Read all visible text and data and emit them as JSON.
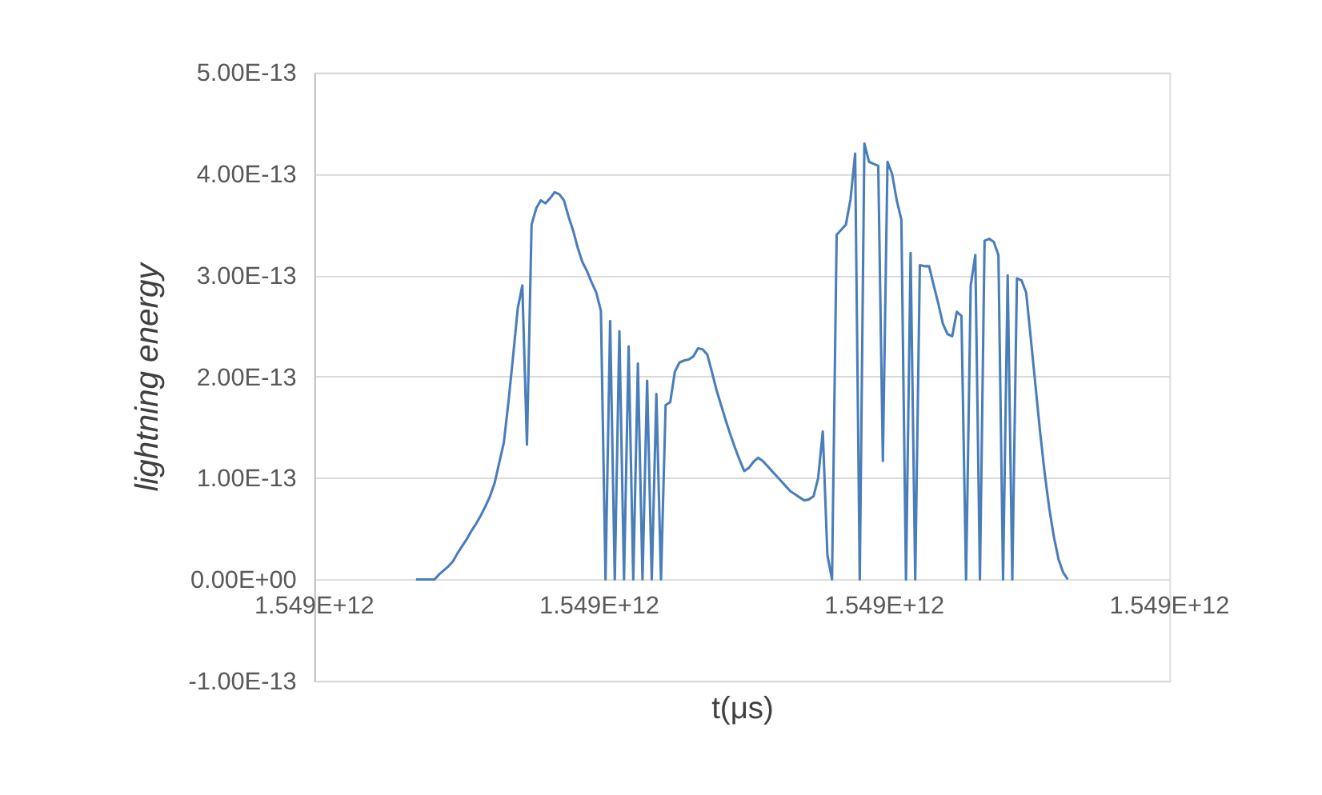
{
  "chart_data": {
    "type": "line",
    "xlabel": "t(μs)",
    "ylabel": "lightning energy",
    "annotations": [
      "1.549E+12",
      "1.549E+12",
      "1.549E+12",
      "1.549E+12"
    ],
    "ylim": [
      -1e-13,
      5e-13
    ],
    "yticks": [
      {
        "value": -1e-13,
        "label": "-1.00E-13"
      },
      {
        "value": 0,
        "label": "0.00E+00"
      },
      {
        "value": 1e-13,
        "label": "1.00E-13"
      },
      {
        "value": 2e-13,
        "label": "2.00E-13"
      },
      {
        "value": 3e-13,
        "label": "3.00E-13"
      },
      {
        "value": 4e-13,
        "label": "4.00E-13"
      },
      {
        "value": 5e-13,
        "label": "5.00E-13"
      }
    ],
    "grid": "y",
    "line_style": "solid",
    "categories": [
      null,
      null,
      null,
      null,
      null,
      null,
      null,
      null,
      null,
      null,
      null,
      null,
      null,
      null,
      null,
      null,
      null,
      null,
      null,
      null,
      null,
      null,
      null,
      null,
      null,
      null,
      null,
      null,
      null,
      null,
      null,
      null,
      null,
      null,
      null,
      null,
      null,
      null,
      null,
      null,
      null,
      null,
      null,
      null,
      null,
      null,
      null,
      null,
      null,
      null,
      null,
      null,
      null,
      null,
      null,
      null,
      null,
      null,
      null,
      null,
      null,
      null,
      null,
      null,
      null,
      null,
      null,
      null,
      null,
      null,
      null,
      null,
      null,
      null,
      null,
      null,
      null,
      null,
      null,
      null,
      null,
      null,
      null,
      null,
      null,
      null,
      null,
      null,
      null,
      null,
      null,
      null,
      null,
      null,
      null,
      null,
      null,
      null,
      null,
      null,
      null,
      null,
      null,
      null,
      null,
      null,
      null,
      null,
      null,
      null,
      null,
      null,
      null,
      null,
      null,
      null,
      null,
      null,
      null,
      null,
      null,
      null,
      null,
      null,
      null,
      null,
      null,
      null,
      null,
      null,
      null,
      null,
      null,
      null,
      null,
      null,
      null,
      null,
      null,
      null,
      null,
      null,
      null,
      null,
      null,
      null,
      null,
      null,
      null,
      null,
      null,
      null,
      null,
      null,
      null,
      null,
      null,
      null,
      null,
      null,
      null,
      null,
      null,
      null,
      null,
      null,
      null,
      null,
      null,
      null,
      null,
      null,
      null,
      null,
      null,
      null,
      null,
      null,
      null,
      null,
      null,
      null,
      null,
      null,
      null,
      null
    ],
    "series": [
      {
        "color": "#4a7ebb",
        "values": [
          null,
          null,
          null,
          null,
          null,
          null,
          null,
          null,
          null,
          null,
          null,
          null,
          null,
          null,
          null,
          null,
          null,
          null,
          null,
          null,
          null,
          null,
          0,
          0,
          0,
          0,
          0,
          5e-15,
          9e-15,
          1.3e-14,
          1.8e-14,
          2.6e-14,
          3.3e-14,
          4e-14,
          4.8e-14,
          5.5e-14,
          6.3e-14,
          7.2e-14,
          8.2e-14,
          9.5e-14,
          1.15e-13,
          1.35e-13,
          1.75e-13,
          2.2e-13,
          2.67e-13,
          2.9e-13,
          1.33e-13,
          3.5e-13,
          3.66e-13,
          3.74e-13,
          3.71e-13,
          3.76e-13,
          3.82e-13,
          3.8e-13,
          3.74e-13,
          3.58e-13,
          3.44e-13,
          3.27e-13,
          3.13e-13,
          3.04e-13,
          2.93e-13,
          2.83e-13,
          2.65e-13,
          0,
          2.55e-13,
          0,
          2.45e-13,
          0,
          2.3e-13,
          0,
          2.13e-13,
          0,
          1.96e-13,
          0,
          1.83e-13,
          0,
          1.72e-13,
          1.75e-13,
          2.05e-13,
          2.14e-13,
          2.16e-13,
          2.17e-13,
          2.2e-13,
          2.28e-13,
          2.27e-13,
          2.22e-13,
          2.05e-13,
          1.87e-13,
          1.72e-13,
          1.57e-13,
          1.43e-13,
          1.3e-13,
          1.18e-13,
          1.07e-13,
          1.1e-13,
          1.16e-13,
          1.2e-13,
          1.17e-13,
          1.12e-13,
          1.07e-13,
          1.02e-13,
          9.7e-14,
          9.2e-14,
          8.7e-14,
          8.4e-14,
          8.1e-14,
          7.8e-14,
          7.9e-14,
          8.2e-14,
          1e-13,
          1.46e-13,
          2.4e-14,
          0,
          3.4e-13,
          3.45e-13,
          3.5e-13,
          3.75e-13,
          4.2e-13,
          0,
          4.3e-13,
          4.12e-13,
          4.1e-13,
          4.08e-13,
          1.17e-13,
          4.12e-13,
          4e-13,
          3.74e-13,
          3.55e-13,
          0,
          3.22e-13,
          0,
          3.1e-13,
          3.09e-13,
          3.09e-13,
          2.9e-13,
          2.72e-13,
          2.52e-13,
          2.42e-13,
          2.4e-13,
          2.64e-13,
          2.6e-13,
          0,
          2.9e-13,
          3.2e-13,
          0,
          3.34e-13,
          3.36e-13,
          3.33e-13,
          3.2e-13,
          0,
          3e-13,
          0,
          2.97e-13,
          2.95e-13,
          2.83e-13,
          2.38e-13,
          1.92e-13,
          1.46e-13,
          1.05e-13,
          7e-14,
          4.2e-14,
          2e-14,
          7e-15,
          0,
          null,
          null,
          null,
          null,
          null,
          null,
          null,
          null,
          null,
          null,
          null,
          null,
          null,
          null,
          null,
          null,
          null,
          null,
          null,
          null,
          null,
          null
        ]
      }
    ]
  }
}
